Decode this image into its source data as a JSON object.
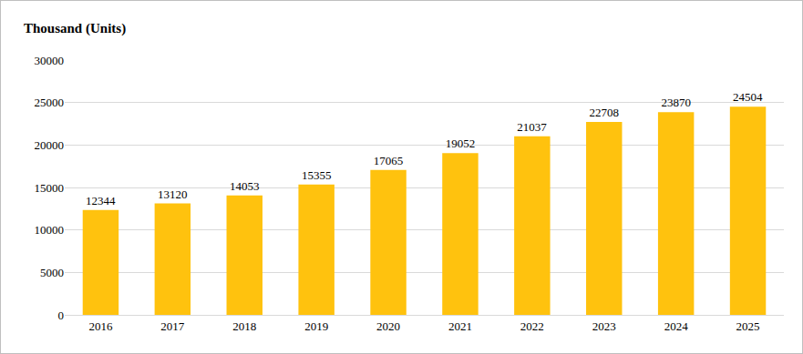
{
  "chart_data": {
    "type": "bar",
    "title": "Thousand (Units)",
    "categories": [
      "2016",
      "2017",
      "2018",
      "2019",
      "2020",
      "2021",
      "2022",
      "2023",
      "2024",
      "2025"
    ],
    "values": [
      12344,
      13120,
      14053,
      15355,
      17065,
      19052,
      21037,
      22708,
      23870,
      24504
    ],
    "color": "#FFC20E",
    "ylim": [
      0,
      30000
    ],
    "yticks": [
      0,
      5000,
      10000,
      15000,
      20000,
      25000,
      30000
    ],
    "grid": true,
    "data_labels": true
  }
}
